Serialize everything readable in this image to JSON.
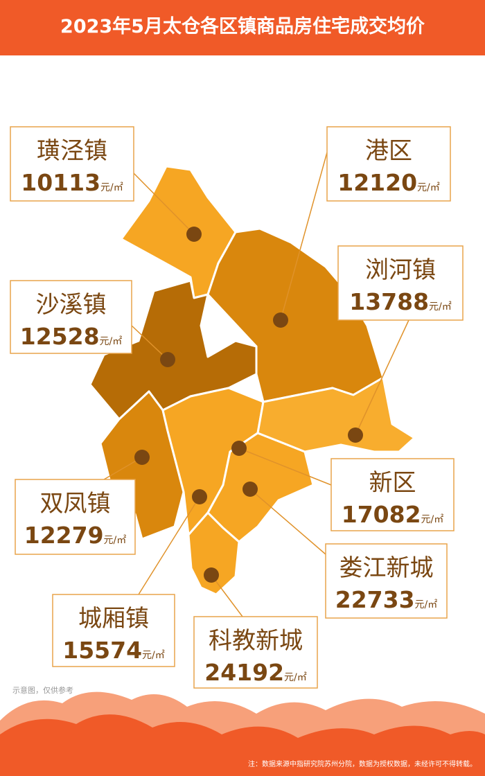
{
  "title": "2023年5月太仓各区镇商品房住宅成交均价",
  "unit": "元/㎡",
  "regions": [
    {
      "name": "璜泾镇",
      "price": 10113
    },
    {
      "name": "港区",
      "price": 12120
    },
    {
      "name": "浏河镇",
      "price": 13788
    },
    {
      "name": "沙溪镇",
      "price": 12528
    },
    {
      "name": "双凤镇",
      "price": 12279
    },
    {
      "name": "新区",
      "price": 17082
    },
    {
      "name": "娄江新城",
      "price": 22733
    },
    {
      "name": "城厢镇",
      "price": 15574
    },
    {
      "name": "科教新城",
      "price": 24192
    }
  ],
  "sketch_note": "示意图，仅供参考",
  "footnote": "注：数据来源中指研究院苏州分院，数据为授权数据，未经许可不得转载。"
}
